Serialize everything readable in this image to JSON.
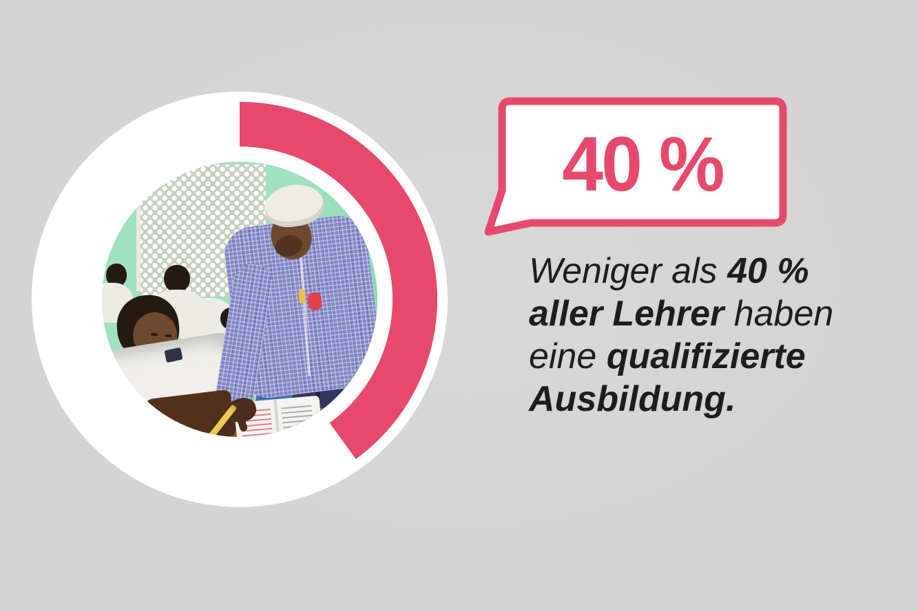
{
  "colors": {
    "background": "#d6d6d6",
    "accent_pink": "#e7496c",
    "text": "#1d1d1b",
    "ring_white": "#ffffff",
    "wall_green": "#9fe1c1",
    "shirt_purple": "#8184c6",
    "trousers_navy": "#33355c",
    "desk_brown": "#8a4b28",
    "skin_brown": "#6f492f",
    "skin_dark": "#4a2d1b",
    "hair_black": "#241a10",
    "cap_white": "#efece3",
    "book_white": "#f4f3ef",
    "jeans_blue": "#3f6fba",
    "pencil_yellow": "#eec94f"
  },
  "chart_data": {
    "type": "donut",
    "percent": 40,
    "values": [
      40,
      60
    ],
    "label": "40 %",
    "start_angle_deg": 0,
    "direction": "clockwise",
    "filled_color": "#e7496c",
    "remainder_color": "#ffffff",
    "title": "",
    "legend": "none",
    "center_content": "classroom-photo"
  },
  "speech_bubble": {
    "value": "40 %"
  },
  "caption": {
    "full_text": "Weniger als 40 % aller Lehrer haben eine qualifizierte Ausbildung.",
    "lines": [
      [
        {
          "text": "Weniger als ",
          "bold": false
        },
        {
          "text": "40 %",
          "bold": true
        }
      ],
      [
        {
          "text": "aller Lehrer",
          "bold": true
        },
        {
          "text": " haben",
          "bold": false
        }
      ],
      [
        {
          "text": "eine ",
          "bold": false
        },
        {
          "text": "qualifizierte",
          "bold": true
        }
      ],
      [
        {
          "text": "Ausbildung.",
          "bold": true
        }
      ]
    ]
  },
  "photo": {
    "description": "Classroom scene: an elderly teacher wearing a white kufi cap and a purple checked shirt leans over a desk pointing into an open exercise book; students in white school shirts sit at the desk, one holding a yellow pencil; mint-green wall with a white lattice window behind them."
  }
}
